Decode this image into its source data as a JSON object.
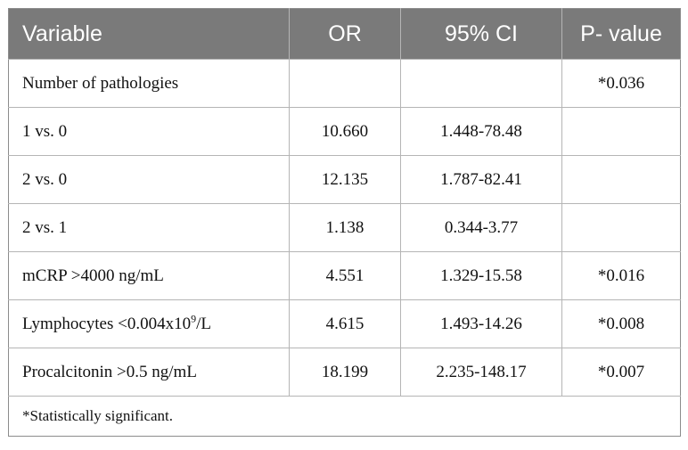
{
  "table": {
    "headers": [
      "Variable",
      "OR",
      "95% CI",
      "P- value"
    ],
    "rows": [
      {
        "variable": "Number of pathologies",
        "or": "",
        "ci": "",
        "p": "*0.036"
      },
      {
        "variable": "1 vs. 0",
        "or": "10.660",
        "ci": "1.448-78.48",
        "p": ""
      },
      {
        "variable": "2 vs. 0",
        "or": "12.135",
        "ci": "1.787-82.41",
        "p": ""
      },
      {
        "variable": "2 vs. 1",
        "or": "1.138",
        "ci": "0.344-3.77",
        "p": ""
      },
      {
        "variable": "mCRP >4000 ng/mL",
        "or": "4.551",
        "ci": "1.329-15.58",
        "p": "*0.016"
      },
      {
        "variable_prefix": "Lymphocytes <0.004x10",
        "variable_sup": "9",
        "variable_suffix": "/L",
        "or": "4.615",
        "ci": "1.493-14.26",
        "p": "*0.008"
      },
      {
        "variable": "Procalcitonin >0.5 ng/mL",
        "or": "18.199",
        "ci": "2.235-148.17",
        "p": "*0.007"
      }
    ],
    "footnote": "*Statistically significant."
  },
  "colors": {
    "header_bg": "#7a7a7a",
    "header_text": "#ffffff",
    "grid_line": "#b5b5b5"
  }
}
